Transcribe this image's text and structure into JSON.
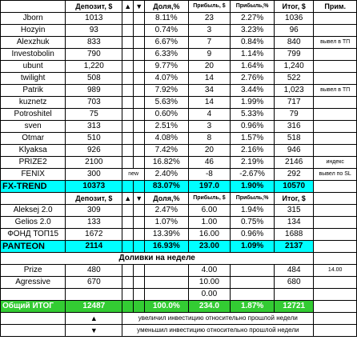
{
  "header": {
    "deposit": "Депозит, $",
    "up_arrow": "▲",
    "down_arrow": "▼",
    "share": "Доля,%",
    "profit_usd": "Прибыль, $",
    "profit_pct": "Прибыль,%",
    "total": "Итог, $",
    "note": "Прим."
  },
  "rows": [
    {
      "name": "Jborn",
      "deposit": "1013",
      "share": "8.11%",
      "profit": "23",
      "pct": "2.27%",
      "total": "1036",
      "note": ""
    },
    {
      "name": "Hozyin",
      "deposit": "93",
      "share": "0.74%",
      "profit": "3",
      "pct": "3.23%",
      "total": "96",
      "note": ""
    },
    {
      "name": "Alexzhuk",
      "deposit": "833",
      "share": "6.67%",
      "profit": "7",
      "pct": "0.84%",
      "total": "840",
      "note": "вывел в ТП"
    },
    {
      "name": "Investobolin",
      "deposit": "790",
      "share": "6.33%",
      "profit": "9",
      "pct": "1.14%",
      "total": "799",
      "note": ""
    },
    {
      "name": "ubunt",
      "deposit": "1,220",
      "share": "9.77%",
      "profit": "20",
      "pct": "1.64%",
      "total": "1,240",
      "note": ""
    },
    {
      "name": "twilight",
      "deposit": "508",
      "share": "4.07%",
      "profit": "14",
      "pct": "2.76%",
      "total": "522",
      "note": ""
    },
    {
      "name": "Patrik",
      "deposit": "989",
      "share": "7.92%",
      "profit": "34",
      "pct": "3.44%",
      "total": "1,023",
      "note": "вывел в ТП"
    },
    {
      "name": "kuznetz",
      "deposit": "703",
      "share": "5.63%",
      "profit": "14",
      "pct": "1.99%",
      "total": "717",
      "note": ""
    },
    {
      "name": "Potroshitel",
      "deposit": "75",
      "share": "0.60%",
      "profit": "4",
      "pct": "5.33%",
      "total": "79",
      "note": ""
    },
    {
      "name": "sven",
      "deposit": "313",
      "share": "2.51%",
      "profit": "3",
      "pct": "0.96%",
      "total": "316",
      "note": ""
    },
    {
      "name": "Otmar",
      "deposit": "510",
      "share": "4.08%",
      "profit": "8",
      "pct": "1.57%",
      "total": "518",
      "note": ""
    },
    {
      "name": "Klyaksa",
      "deposit": "926",
      "share": "7.42%",
      "profit": "20",
      "pct": "2.16%",
      "total": "946",
      "note": ""
    },
    {
      "name": "PRIZE2",
      "deposit": "2100",
      "share": "16.82%",
      "profit": "46",
      "pct": "2.19%",
      "total": "2146",
      "note": "индекс"
    },
    {
      "name": "FENIX",
      "deposit": "300",
      "flag": "new",
      "share": "2.40%",
      "profit": "-8",
      "pct": "-2.67%",
      "total": "292",
      "note": "вывел по SL"
    }
  ],
  "fx_total": {
    "name": "FX-TREND",
    "deposit": "10373",
    "share": "83.07%",
    "profit": "197.0",
    "pct": "1.90%",
    "total": "10570"
  },
  "rows2": [
    {
      "name": "Aleksej 2.0",
      "deposit": "309",
      "share": "2.47%",
      "profit": "6.00",
      "pct": "1.94%",
      "total": "315"
    },
    {
      "name": "Gelios 2.0",
      "deposit": "133",
      "share": "1.07%",
      "profit": "1.00",
      "pct": "0.75%",
      "total": "134"
    },
    {
      "name": "ФОНД ТОП15",
      "deposit": "1672",
      "share": "13.39%",
      "profit": "16.00",
      "pct": "0.96%",
      "total": "1688"
    }
  ],
  "panteon": {
    "name": "PANTEON",
    "deposit": "2114",
    "share": "16.93%",
    "profit": "23.00",
    "pct": "1.09%",
    "total": "2137"
  },
  "weekly": {
    "title": "Доливки на неделе",
    "rows": [
      {
        "name": "Prize",
        "deposit": "480",
        "profit": "4.00",
        "total": "484",
        "side": "14.00"
      },
      {
        "name": "Agressive",
        "deposit": "670",
        "profit": "10.00",
        "total": "680",
        "side": ""
      },
      {
        "name": "",
        "deposit": "",
        "profit": "0.00",
        "total": "",
        "side": ""
      }
    ]
  },
  "grand_total": {
    "name": "Общий ИТОГ",
    "deposit": "12487",
    "share": "100.0%",
    "profit": "234.0",
    "pct": "1.87%",
    "total": "12721"
  },
  "legend": {
    "up_arrow": "▲",
    "up_text": "увеличил инвестицию относительно прошлой недели",
    "down_arrow": "▼",
    "down_text": "уменьшил инвестицию относительно прошлой недели"
  }
}
